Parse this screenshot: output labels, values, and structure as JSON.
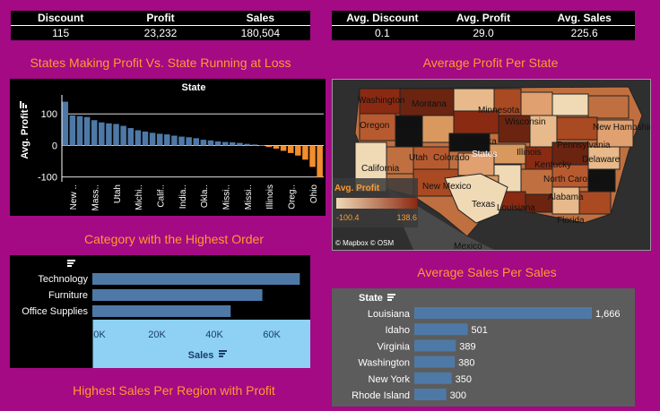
{
  "kpi_left": {
    "headers": [
      "Discount",
      "Profit",
      "Sales"
    ],
    "values": [
      "115",
      "23,232",
      "180,504"
    ]
  },
  "kpi_right": {
    "headers": [
      "Avg. Discount",
      "Avg. Profit",
      "Avg. Sales"
    ],
    "values": [
      "0.1",
      "29.0",
      "225.6"
    ]
  },
  "titles": {
    "states_profit": "States Making Profit Vs. State Running at Loss",
    "avg_profit_state": "Average Profit Per State",
    "category": "Category with the Highest Order",
    "avg_sales": "Average Sales Per Sales",
    "region": "Highest Sales Per Region with Profit"
  },
  "map": {
    "legend_title": "Avg. Profit",
    "legend_min": "-100.4",
    "legend_max": "138.6",
    "credit": "© Mapbox  © OSM",
    "colors": {
      "low": "#f0d9b5",
      "high": "#8b2a12"
    },
    "labels": [
      "Washington",
      "Montana",
      "Minnesota",
      "Wisconsin",
      "Oregon",
      "Idaho",
      "Nebraska",
      "Illinois",
      "New Hampshire",
      "Pennsylvania",
      "Utah",
      "Colorado",
      "States",
      "Delaware",
      "California",
      "Kentucky",
      "North Carolina",
      "New Mexico",
      "Alabama",
      "Texas",
      "Louisiana",
      "Florida",
      "Mexico"
    ]
  },
  "chart_data": [
    {
      "type": "bar",
      "title": "State",
      "xlabel": "",
      "ylabel": "Avg. Profit",
      "ylim": [
        -115,
        160
      ],
      "yticks": [
        -100,
        0,
        100
      ],
      "colors": {
        "positive": "#4e79a7",
        "negative": "#f28e2b"
      },
      "tick_labels": [
        "New ..",
        "Mass..",
        "Utah",
        "Michi..",
        "Calif..",
        "India..",
        "Okla..",
        "Missi..",
        "Missi..",
        "Illinois",
        "Oreg..",
        "Ohio"
      ],
      "values": [
        138.6,
        95,
        93,
        90,
        80,
        73,
        70,
        68,
        62,
        55,
        48,
        44,
        40,
        37,
        35,
        31,
        28,
        26,
        23,
        18,
        16,
        13,
        11,
        10,
        8,
        5,
        3,
        1,
        -5,
        -10,
        -17,
        -24,
        -32,
        -45,
        -68,
        -100.4
      ]
    },
    {
      "type": "bar",
      "orientation": "horizontal",
      "categories": [
        "Technology",
        "Furniture",
        "Office Supplies"
      ],
      "values": [
        72000,
        59000,
        48000
      ],
      "xlabel": "Sales",
      "ylabel": "",
      "xticks": [
        "0K",
        "20K",
        "40K",
        "60K"
      ],
      "xlim": [
        0,
        75000
      ],
      "color": "#4e79a7"
    },
    {
      "type": "bar",
      "orientation": "horizontal",
      "ylabel": "State",
      "categories": [
        "Louisiana",
        "Idaho",
        "Virginia",
        "Washington",
        "New York",
        "Rhode Island"
      ],
      "values": [
        1666,
        501,
        389,
        380,
        350,
        300
      ],
      "labels": [
        "1,666",
        "501",
        "389",
        "380",
        "350",
        "300"
      ],
      "xlim": [
        0,
        1666
      ],
      "color": "#4e79a7"
    }
  ]
}
